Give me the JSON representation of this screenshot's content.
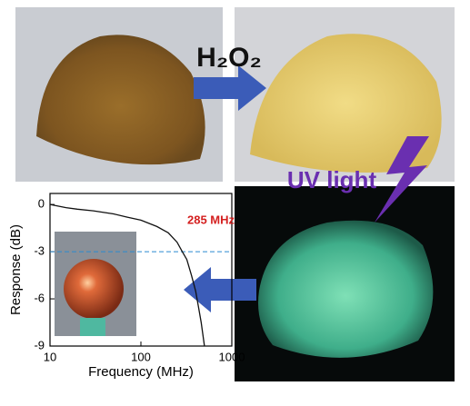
{
  "labels": {
    "oxidant": "H₂O₂",
    "excitation": "UV light"
  },
  "chart_data": {
    "type": "line",
    "x_label": "Frequency (MHz)",
    "y_label": "Response (dB)",
    "annotation": "285 MHz",
    "threshold": -3,
    "log_x": true,
    "color": "#111111",
    "x": [
      10,
      15,
      20,
      30,
      50,
      70,
      100,
      150,
      200,
      250,
      285,
      320,
      360,
      400,
      430,
      460,
      500
    ],
    "values": [
      0,
      -0.2,
      -0.3,
      -0.4,
      -0.6,
      -0.8,
      -1.0,
      -1.4,
      -1.8,
      -2.4,
      -3,
      -3.5,
      -4.5,
      -5.5,
      -6.5,
      -7.5,
      -9
    ],
    "xlim": [
      10,
      1000
    ],
    "xticks": [
      10,
      100,
      1000
    ],
    "ylim": [
      -9,
      0.7
    ],
    "yticks": [
      0,
      -3,
      -6,
      -9
    ]
  }
}
